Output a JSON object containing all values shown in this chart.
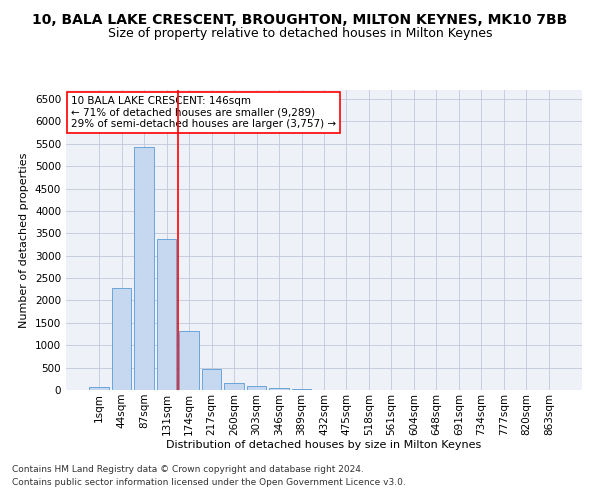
{
  "title": "10, BALA LAKE CRESCENT, BROUGHTON, MILTON KEYNES, MK10 7BB",
  "subtitle": "Size of property relative to detached houses in Milton Keynes",
  "xlabel": "Distribution of detached houses by size in Milton Keynes",
  "ylabel": "Number of detached properties",
  "footnote1": "Contains HM Land Registry data © Crown copyright and database right 2024.",
  "footnote2": "Contains public sector information licensed under the Open Government Licence v3.0.",
  "bar_labels": [
    "1sqm",
    "44sqm",
    "87sqm",
    "131sqm",
    "174sqm",
    "217sqm",
    "260sqm",
    "303sqm",
    "346sqm",
    "389sqm",
    "432sqm",
    "475sqm",
    "518sqm",
    "561sqm",
    "604sqm",
    "648sqm",
    "691sqm",
    "734sqm",
    "777sqm",
    "820sqm",
    "863sqm"
  ],
  "bar_values": [
    75,
    2270,
    5420,
    3380,
    1310,
    480,
    160,
    85,
    55,
    30,
    10,
    5,
    5,
    0,
    0,
    0,
    0,
    0,
    0,
    0,
    0
  ],
  "bar_color": "#c5d8f0",
  "bar_edgecolor": "#5b9bd5",
  "vline_x": 3.5,
  "vline_color": "red",
  "annotation_text": "10 BALA LAKE CRESCENT: 146sqm\n← 71% of detached houses are smaller (9,289)\n29% of semi-detached houses are larger (3,757) →",
  "annotation_box_color": "white",
  "annotation_box_edgecolor": "red",
  "ylim": [
    0,
    6700
  ],
  "yticks": [
    0,
    500,
    1000,
    1500,
    2000,
    2500,
    3000,
    3500,
    4000,
    4500,
    5000,
    5500,
    6000,
    6500
  ],
  "grid_color": "#c0c8d8",
  "bg_color": "#eef2f8",
  "title_fontsize": 10,
  "subtitle_fontsize": 9,
  "axis_fontsize": 8,
  "tick_fontsize": 7.5,
  "annotation_fontsize": 7.5,
  "footnote_fontsize": 6.5
}
